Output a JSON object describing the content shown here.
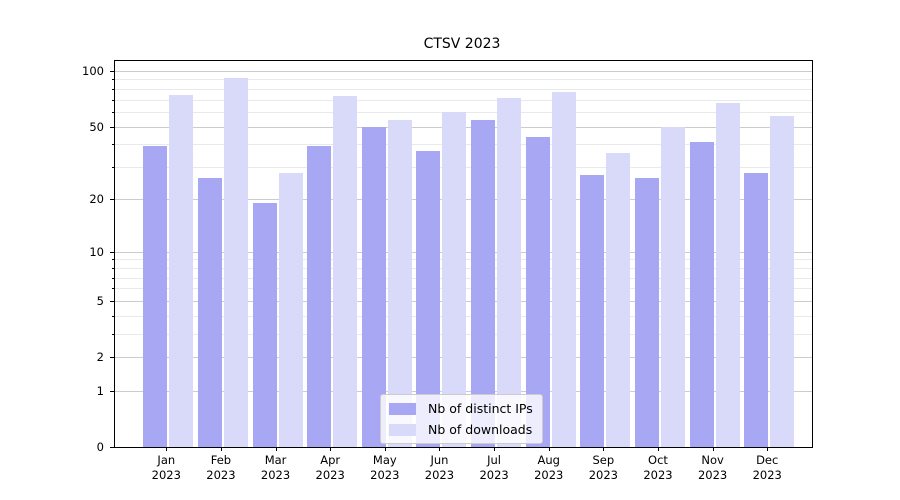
{
  "title": "CTSV 2023",
  "chart_data": {
    "type": "bar",
    "title": "CTSV 2023",
    "yscale": "log1p",
    "grid": true,
    "legend_position": "lower center",
    "ylim": [
      0,
      113
    ],
    "yticks": [
      0,
      1,
      2,
      5,
      10,
      20,
      50,
      100
    ],
    "minor_yticks": [
      3,
      4,
      6,
      7,
      8,
      9,
      30,
      40,
      60,
      70,
      80,
      90
    ],
    "categories": [
      "Jan",
      "Feb",
      "Mar",
      "Apr",
      "May",
      "Jun",
      "Jul",
      "Aug",
      "Sep",
      "Oct",
      "Nov",
      "Dec"
    ],
    "year_label": "2023",
    "series": [
      {
        "name": "Nb of distinct IPs",
        "color": "#a7a7f3",
        "values": [
          39,
          26,
          19,
          39,
          50,
          37,
          54,
          44,
          27,
          26,
          41,
          28
        ]
      },
      {
        "name": "Nb of downloads",
        "color": "#d9d9f9",
        "values": [
          74,
          91,
          28,
          73,
          54,
          60,
          71,
          77,
          36,
          50,
          67,
          57
        ]
      }
    ]
  }
}
